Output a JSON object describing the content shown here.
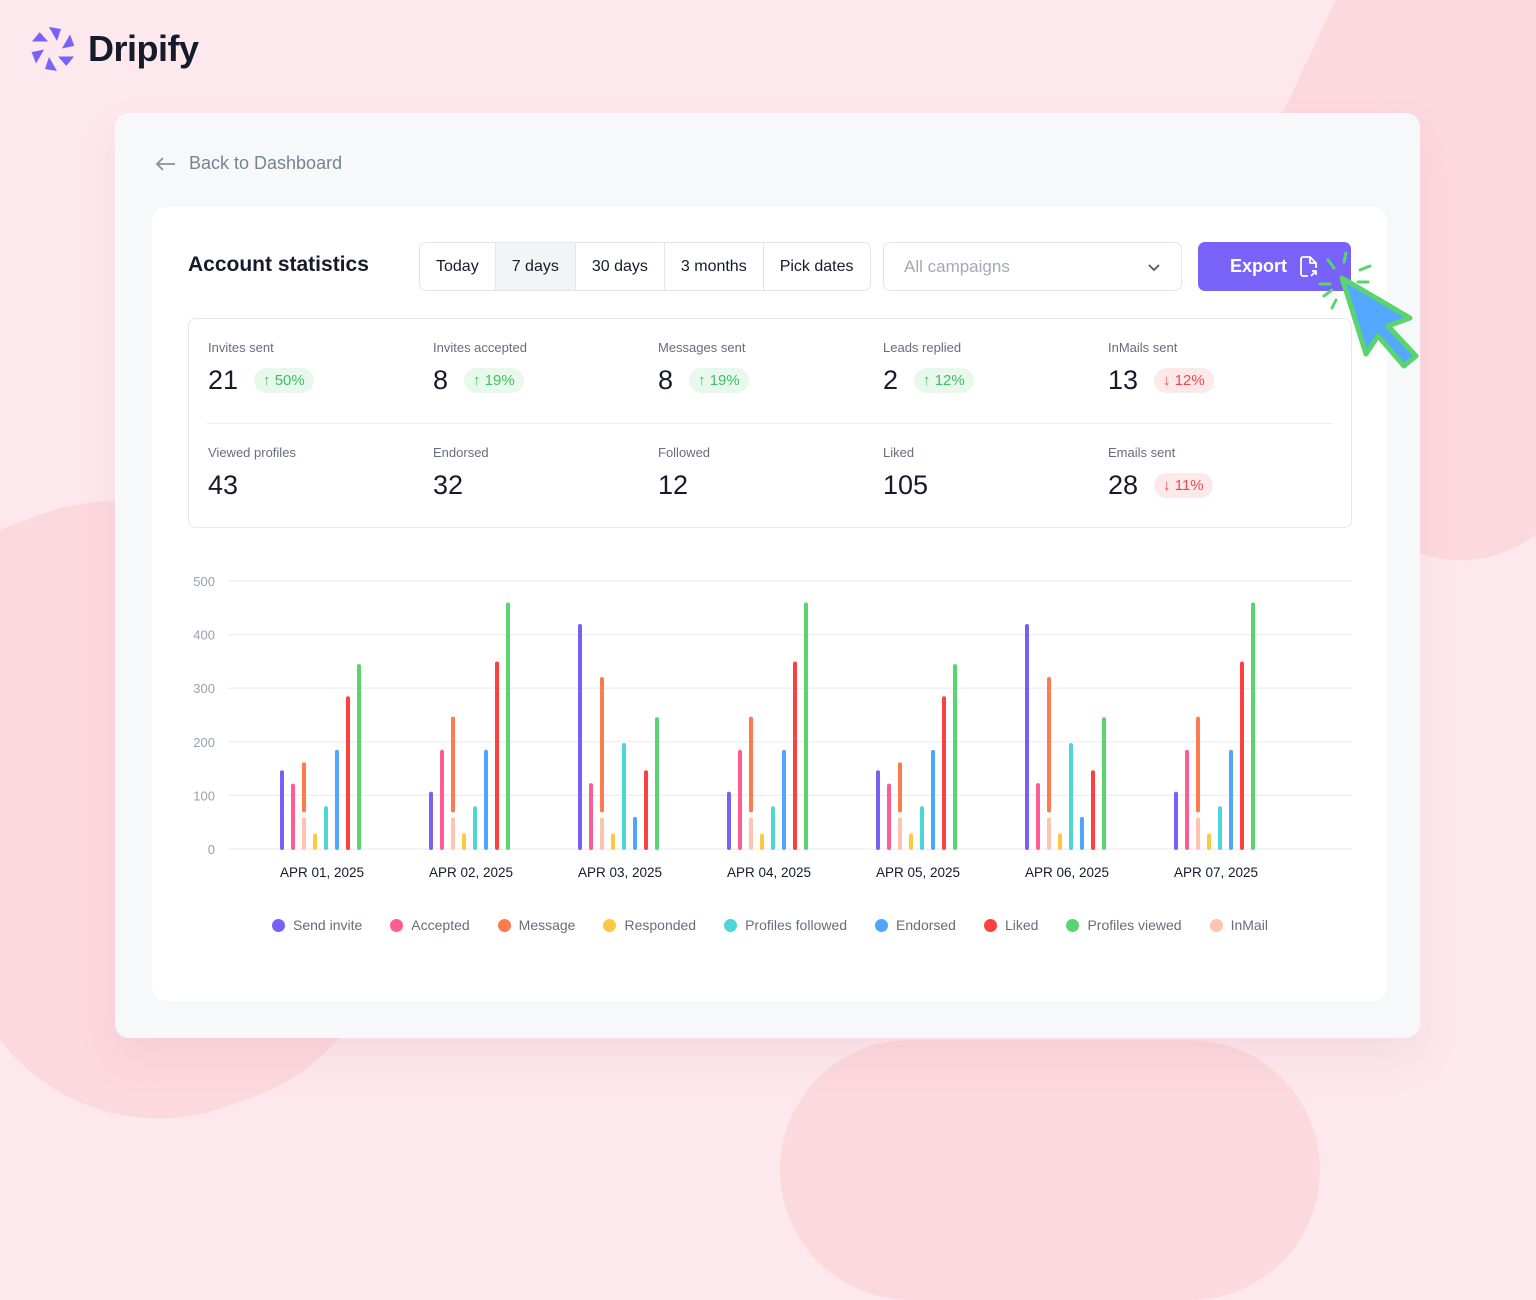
{
  "brand": {
    "name": "Dripify",
    "color": "#7862f8"
  },
  "nav": {
    "back_label": "Back to Dashboard"
  },
  "header": {
    "title": "Account statistics",
    "ranges": [
      "Today",
      "7 days",
      "30 days",
      "3 months",
      "Pick dates"
    ],
    "active_range": "7 days",
    "campaign_select": {
      "value": "All campaigns"
    },
    "export_label": "Export"
  },
  "stats": [
    {
      "label": "Invites sent",
      "value": "21",
      "change": "50%",
      "direction": "up"
    },
    {
      "label": "Invites accepted",
      "value": "8",
      "change": "19%",
      "direction": "up"
    },
    {
      "label": "Messages sent",
      "value": "8",
      "change": "19%",
      "direction": "up"
    },
    {
      "label": "Leads replied",
      "value": "2",
      "change": "12%",
      "direction": "up"
    },
    {
      "label": "InMails sent",
      "value": "13",
      "change": "12%",
      "direction": "down"
    },
    {
      "label": "Viewed profiles",
      "value": "43"
    },
    {
      "label": "Endorsed",
      "value": "32"
    },
    {
      "label": "Followed",
      "value": "12"
    },
    {
      "label": "Liked",
      "value": "105"
    },
    {
      "label": "Emails sent",
      "value": "28",
      "change": "11%",
      "direction": "down"
    }
  ],
  "chart_data": {
    "type": "bar",
    "categories": [
      "APR 01, 2025",
      "APR 02, 2025",
      "APR 03, 2025",
      "APR 04, 2025",
      "APR 05, 2025",
      "APR 06, 2025",
      "APR 07, 2025"
    ],
    "ylim": [
      0,
      500
    ],
    "yticks": [
      "0",
      "100",
      "200",
      "300",
      "400",
      "500"
    ],
    "grid": true,
    "legend": "bottom",
    "series": [
      {
        "name": "Send invite",
        "color": "#7860f6",
        "values": [
          145,
          105,
          418,
          105,
          145,
          418,
          105
        ]
      },
      {
        "name": "Accepted",
        "color": "#ff5c93",
        "values": [
          120,
          183,
          121,
          183,
          120,
          121,
          183
        ]
      },
      {
        "name": "Message",
        "color": "#ff7a4d",
        "values": [
          90,
          175,
          249,
          175,
          90,
          249,
          175
        ],
        "stacked_on": "InMail"
      },
      {
        "name": "Responded",
        "color": "#ffc83d",
        "values": [
          27,
          27,
          27,
          27,
          27,
          27,
          27
        ]
      },
      {
        "name": "Profiles followed",
        "color": "#4dd6d6",
        "values": [
          78,
          78,
          196,
          78,
          78,
          196,
          78
        ]
      },
      {
        "name": "Endorsed",
        "color": "#4ea6ff",
        "values": [
          183,
          183,
          58,
          183,
          183,
          58,
          183
        ]
      },
      {
        "name": "Liked",
        "color": "#ff4040",
        "values": [
          283,
          348,
          145,
          348,
          283,
          145,
          348
        ]
      },
      {
        "name": "Profiles viewed",
        "color": "#5ad46e",
        "values": [
          343,
          458,
          244,
          458,
          343,
          244,
          458
        ]
      },
      {
        "name": "InMail",
        "color": "#ffc3b0",
        "values": [
          57,
          57,
          57,
          57,
          57,
          57,
          57
        ]
      }
    ]
  }
}
